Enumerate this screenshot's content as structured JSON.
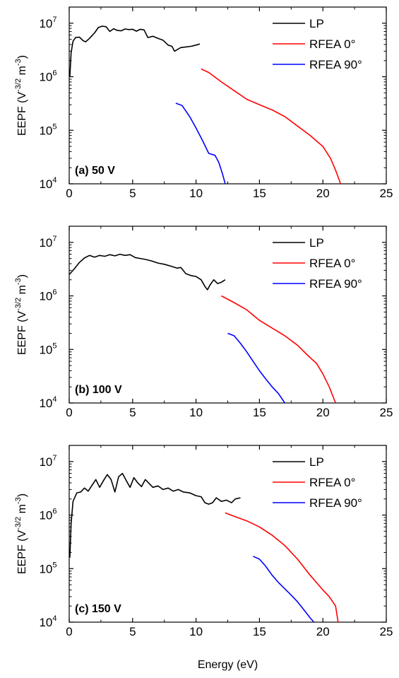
{
  "chart_data": [
    {
      "type": "line",
      "panel_label": "(a) 50 V",
      "ylabel": {
        "main": "EEPF (V",
        "exp1": "-3/2",
        "mid": " m",
        "exp2": "-3"
      },
      "xlim": [
        0,
        25
      ],
      "ylim": [
        10000,
        20000000
      ],
      "yscale": "log",
      "xticks": [
        "0",
        "5",
        "10",
        "15",
        "20",
        "25"
      ],
      "yticks": [
        {
          "value": 10000,
          "base": "10",
          "exp": "4"
        },
        {
          "value": 100000,
          "base": "10",
          "exp": "5"
        },
        {
          "value": 1000000,
          "base": "10",
          "exp": "6"
        },
        {
          "value": 10000000,
          "base": "10",
          "exp": "7"
        }
      ],
      "legend": "top-right",
      "series": [
        {
          "name": "LP",
          "color": "#000000",
          "points": [
            [
              0.05,
              1000000
            ],
            [
              0.15,
              2800000
            ],
            [
              0.3,
              4600000
            ],
            [
              0.5,
              5400000
            ],
            [
              0.8,
              5500000
            ],
            [
              1.1,
              4700000
            ],
            [
              1.3,
              4500000
            ],
            [
              1.6,
              5200000
            ],
            [
              2.0,
              6600000
            ],
            [
              2.3,
              8300000
            ],
            [
              2.6,
              8800000
            ],
            [
              2.9,
              8600000
            ],
            [
              3.2,
              7000000
            ],
            [
              3.5,
              7900000
            ],
            [
              3.8,
              7300000
            ],
            [
              4.1,
              7200000
            ],
            [
              4.4,
              7800000
            ],
            [
              4.7,
              7600000
            ],
            [
              5.0,
              7700000
            ],
            [
              5.3,
              7100000
            ],
            [
              5.6,
              7700000
            ],
            [
              5.9,
              7500000
            ],
            [
              6.2,
              5400000
            ],
            [
              6.6,
              5700000
            ],
            [
              7.0,
              5200000
            ],
            [
              7.4,
              4800000
            ],
            [
              7.8,
              3900000
            ],
            [
              8.1,
              3700000
            ],
            [
              8.3,
              3000000
            ],
            [
              8.5,
              3200000
            ],
            [
              8.8,
              3500000
            ],
            [
              9.2,
              3600000
            ],
            [
              9.6,
              3700000
            ],
            [
              10.0,
              3900000
            ],
            [
              10.3,
              4100000
            ]
          ]
        },
        {
          "name": "RFEA 0°",
          "color": "#ff0000",
          "points": [
            [
              10.4,
              1400000
            ],
            [
              11.0,
              1200000
            ],
            [
              12.0,
              800000
            ],
            [
              13.0,
              550000
            ],
            [
              14.0,
              380000
            ],
            [
              15.0,
              300000
            ],
            [
              16.0,
              240000
            ],
            [
              17.0,
              180000
            ],
            [
              18.0,
              120000
            ],
            [
              19.0,
              80000
            ],
            [
              20.0,
              50000
            ],
            [
              20.6,
              30000
            ],
            [
              21.0,
              18000
            ],
            [
              21.4,
              10000
            ]
          ]
        },
        {
          "name": "RFEA 90°",
          "color": "#0000ff",
          "points": [
            [
              8.4,
              320000
            ],
            [
              8.9,
              290000
            ],
            [
              9.5,
              180000
            ],
            [
              10.0,
              110000
            ],
            [
              10.5,
              65000
            ],
            [
              11.0,
              37000
            ],
            [
              11.5,
              34000
            ],
            [
              11.8,
              25000
            ],
            [
              12.1,
              15000
            ],
            [
              12.3,
              10000
            ]
          ]
        }
      ]
    },
    {
      "type": "line",
      "panel_label": "(b) 100 V",
      "ylabel": {
        "main": "EEPF (V",
        "exp1": "-3/2",
        "mid": " m",
        "exp2": "-3"
      },
      "xlim": [
        0,
        25
      ],
      "ylim": [
        10000,
        20000000
      ],
      "yscale": "log",
      "xticks": [
        "0",
        "5",
        "10",
        "15",
        "20",
        "25"
      ],
      "yticks": [
        {
          "value": 10000,
          "base": "10",
          "exp": "4"
        },
        {
          "value": 100000,
          "base": "10",
          "exp": "5"
        },
        {
          "value": 1000000,
          "base": "10",
          "exp": "6"
        },
        {
          "value": 10000000,
          "base": "10",
          "exp": "7"
        }
      ],
      "legend": "top-right",
      "series": [
        {
          "name": "LP",
          "color": "#000000",
          "points": [
            [
              0.0,
              2500000
            ],
            [
              0.4,
              3200000
            ],
            [
              0.8,
              4200000
            ],
            [
              1.2,
              5100000
            ],
            [
              1.6,
              5700000
            ],
            [
              2.0,
              5300000
            ],
            [
              2.4,
              5700000
            ],
            [
              2.8,
              5500000
            ],
            [
              3.2,
              5900000
            ],
            [
              3.6,
              5600000
            ],
            [
              4.0,
              6000000
            ],
            [
              4.4,
              5700000
            ],
            [
              4.8,
              5900000
            ],
            [
              5.2,
              5200000
            ],
            [
              5.6,
              5000000
            ],
            [
              6.0,
              4800000
            ],
            [
              6.5,
              4500000
            ],
            [
              7.0,
              4100000
            ],
            [
              7.5,
              3900000
            ],
            [
              8.0,
              3600000
            ],
            [
              8.5,
              3300000
            ],
            [
              8.8,
              3400000
            ],
            [
              9.2,
              2600000
            ],
            [
              9.6,
              2400000
            ],
            [
              10.0,
              2300000
            ],
            [
              10.4,
              2000000
            ],
            [
              10.7,
              1500000
            ],
            [
              10.9,
              1300000
            ],
            [
              11.1,
              1600000
            ],
            [
              11.4,
              2000000
            ],
            [
              11.7,
              1700000
            ],
            [
              12.0,
              1800000
            ],
            [
              12.3,
              2000000
            ]
          ]
        },
        {
          "name": "RFEA 0°",
          "color": "#ff0000",
          "points": [
            [
              12.0,
              1000000
            ],
            [
              13.0,
              750000
            ],
            [
              14.0,
              550000
            ],
            [
              15.0,
              350000
            ],
            [
              16.0,
              250000
            ],
            [
              17.0,
              180000
            ],
            [
              18.0,
              120000
            ],
            [
              19.0,
              70000
            ],
            [
              19.5,
              55000
            ],
            [
              20.0,
              35000
            ],
            [
              20.5,
              20000
            ],
            [
              21.0,
              10000
            ]
          ]
        },
        {
          "name": "RFEA 90°",
          "color": "#0000ff",
          "points": [
            [
              12.5,
              200000
            ],
            [
              13.0,
              180000
            ],
            [
              13.5,
              130000
            ],
            [
              14.0,
              90000
            ],
            [
              14.5,
              60000
            ],
            [
              15.0,
              40000
            ],
            [
              15.5,
              28000
            ],
            [
              16.0,
              20000
            ],
            [
              16.5,
              15000
            ],
            [
              17.0,
              10000
            ]
          ]
        }
      ]
    },
    {
      "type": "line",
      "panel_label": "(c) 150 V",
      "ylabel": {
        "main": "EEPF (V",
        "exp1": "-3/2",
        "mid": " m",
        "exp2": "-3"
      },
      "xlabel": "Energy (eV)",
      "xlim": [
        0,
        25
      ],
      "ylim": [
        10000,
        20000000
      ],
      "yscale": "log",
      "xticks": [
        "0",
        "5",
        "10",
        "15",
        "20",
        "25"
      ],
      "yticks": [
        {
          "value": 10000,
          "base": "10",
          "exp": "4"
        },
        {
          "value": 100000,
          "base": "10",
          "exp": "5"
        },
        {
          "value": 1000000,
          "base": "10",
          "exp": "6"
        },
        {
          "value": 10000000,
          "base": "10",
          "exp": "7"
        }
      ],
      "legend": "top-right",
      "series": [
        {
          "name": "LP",
          "color": "#000000",
          "points": [
            [
              0.05,
              160000
            ],
            [
              0.15,
              700000
            ],
            [
              0.3,
              1800000
            ],
            [
              0.6,
              2600000
            ],
            [
              0.9,
              2700000
            ],
            [
              1.2,
              3200000
            ],
            [
              1.5,
              2800000
            ],
            [
              1.8,
              3600000
            ],
            [
              2.1,
              4600000
            ],
            [
              2.4,
              3300000
            ],
            [
              2.7,
              4400000
            ],
            [
              3.0,
              5700000
            ],
            [
              3.3,
              4600000
            ],
            [
              3.6,
              2700000
            ],
            [
              3.9,
              5200000
            ],
            [
              4.2,
              6000000
            ],
            [
              4.5,
              4400000
            ],
            [
              4.8,
              3300000
            ],
            [
              5.1,
              5000000
            ],
            [
              5.4,
              4000000
            ],
            [
              5.7,
              3400000
            ],
            [
              6.0,
              4600000
            ],
            [
              6.3,
              3900000
            ],
            [
              6.6,
              3300000
            ],
            [
              7.0,
              3500000
            ],
            [
              7.4,
              3000000
            ],
            [
              7.8,
              3200000
            ],
            [
              8.2,
              2800000
            ],
            [
              8.6,
              3000000
            ],
            [
              9.0,
              2700000
            ],
            [
              9.5,
              2600000
            ],
            [
              10.0,
              2300000
            ],
            [
              10.4,
              2200000
            ],
            [
              10.7,
              1700000
            ],
            [
              11.0,
              1600000
            ],
            [
              11.3,
              1700000
            ],
            [
              11.6,
              2100000
            ],
            [
              12.0,
              1800000
            ],
            [
              12.4,
              1900000
            ],
            [
              12.8,
              1700000
            ],
            [
              13.1,
              2000000
            ],
            [
              13.5,
              2100000
            ]
          ]
        },
        {
          "name": "RFEA 0°",
          "color": "#ff0000",
          "points": [
            [
              12.3,
              1100000
            ],
            [
              13.0,
              950000
            ],
            [
              14.0,
              780000
            ],
            [
              15.0,
              600000
            ],
            [
              16.0,
              420000
            ],
            [
              17.0,
              270000
            ],
            [
              18.0,
              150000
            ],
            [
              19.0,
              75000
            ],
            [
              20.0,
              40000
            ],
            [
              20.5,
              30000
            ],
            [
              21.0,
              20000
            ],
            [
              21.2,
              10000
            ]
          ]
        },
        {
          "name": "RFEA 90°",
          "color": "#0000ff",
          "points": [
            [
              14.5,
              170000
            ],
            [
              15.0,
              150000
            ],
            [
              15.5,
              110000
            ],
            [
              16.0,
              75000
            ],
            [
              16.5,
              55000
            ],
            [
              17.0,
              42000
            ],
            [
              17.5,
              32000
            ],
            [
              18.0,
              24000
            ],
            [
              18.5,
              17000
            ],
            [
              19.0,
              12000
            ],
            [
              19.3,
              10000
            ]
          ]
        }
      ]
    }
  ]
}
